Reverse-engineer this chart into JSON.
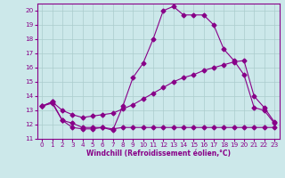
{
  "xlabel": "Windchill (Refroidissement éolien,°C)",
  "xlim": [
    -0.5,
    23.5
  ],
  "ylim": [
    11,
    20.5
  ],
  "yticks": [
    11,
    12,
    13,
    14,
    15,
    16,
    17,
    18,
    19,
    20
  ],
  "xticks": [
    0,
    1,
    2,
    3,
    4,
    5,
    6,
    7,
    8,
    9,
    10,
    11,
    12,
    13,
    14,
    15,
    16,
    17,
    18,
    19,
    20,
    21,
    22,
    23
  ],
  "bg_color": "#cce8ea",
  "line_color": "#880088",
  "grid_color": "#aacccc",
  "line1_x": [
    0,
    1,
    2,
    3,
    4,
    5,
    6,
    7,
    8,
    9,
    10,
    11,
    12,
    13,
    14,
    15,
    16,
    17,
    18,
    19,
    20,
    21,
    22,
    23
  ],
  "line1_y": [
    13.3,
    13.6,
    12.3,
    11.8,
    11.7,
    11.7,
    11.8,
    11.6,
    13.3,
    15.3,
    16.3,
    18.0,
    20.0,
    20.3,
    19.7,
    19.7,
    19.7,
    19.0,
    17.3,
    16.5,
    15.5,
    13.2,
    13.0,
    12.1
  ],
  "line2_x": [
    0,
    1,
    2,
    3,
    4,
    5,
    6,
    7,
    8,
    9,
    10,
    11,
    12,
    13,
    14,
    15,
    16,
    17,
    18,
    19,
    20,
    21,
    22,
    23
  ],
  "line2_y": [
    13.3,
    13.5,
    12.3,
    12.1,
    11.8,
    11.8,
    11.8,
    11.7,
    11.8,
    11.8,
    11.8,
    11.8,
    11.8,
    11.8,
    11.8,
    11.8,
    11.8,
    11.8,
    11.8,
    11.8,
    11.8,
    11.8,
    11.8,
    11.8
  ],
  "line3_x": [
    0,
    1,
    2,
    3,
    4,
    5,
    6,
    7,
    8,
    9,
    10,
    11,
    12,
    13,
    14,
    15,
    16,
    17,
    18,
    19,
    20,
    21,
    22,
    23
  ],
  "line3_y": [
    13.3,
    13.6,
    13.0,
    12.7,
    12.5,
    12.6,
    12.7,
    12.8,
    13.1,
    13.4,
    13.8,
    14.2,
    14.6,
    15.0,
    15.3,
    15.5,
    15.8,
    16.0,
    16.2,
    16.4,
    16.5,
    14.0,
    13.2,
    12.2
  ],
  "marker_size": 2.5,
  "linewidth": 0.8,
  "tick_fontsize": 5.2,
  "xlabel_fontsize": 5.5
}
